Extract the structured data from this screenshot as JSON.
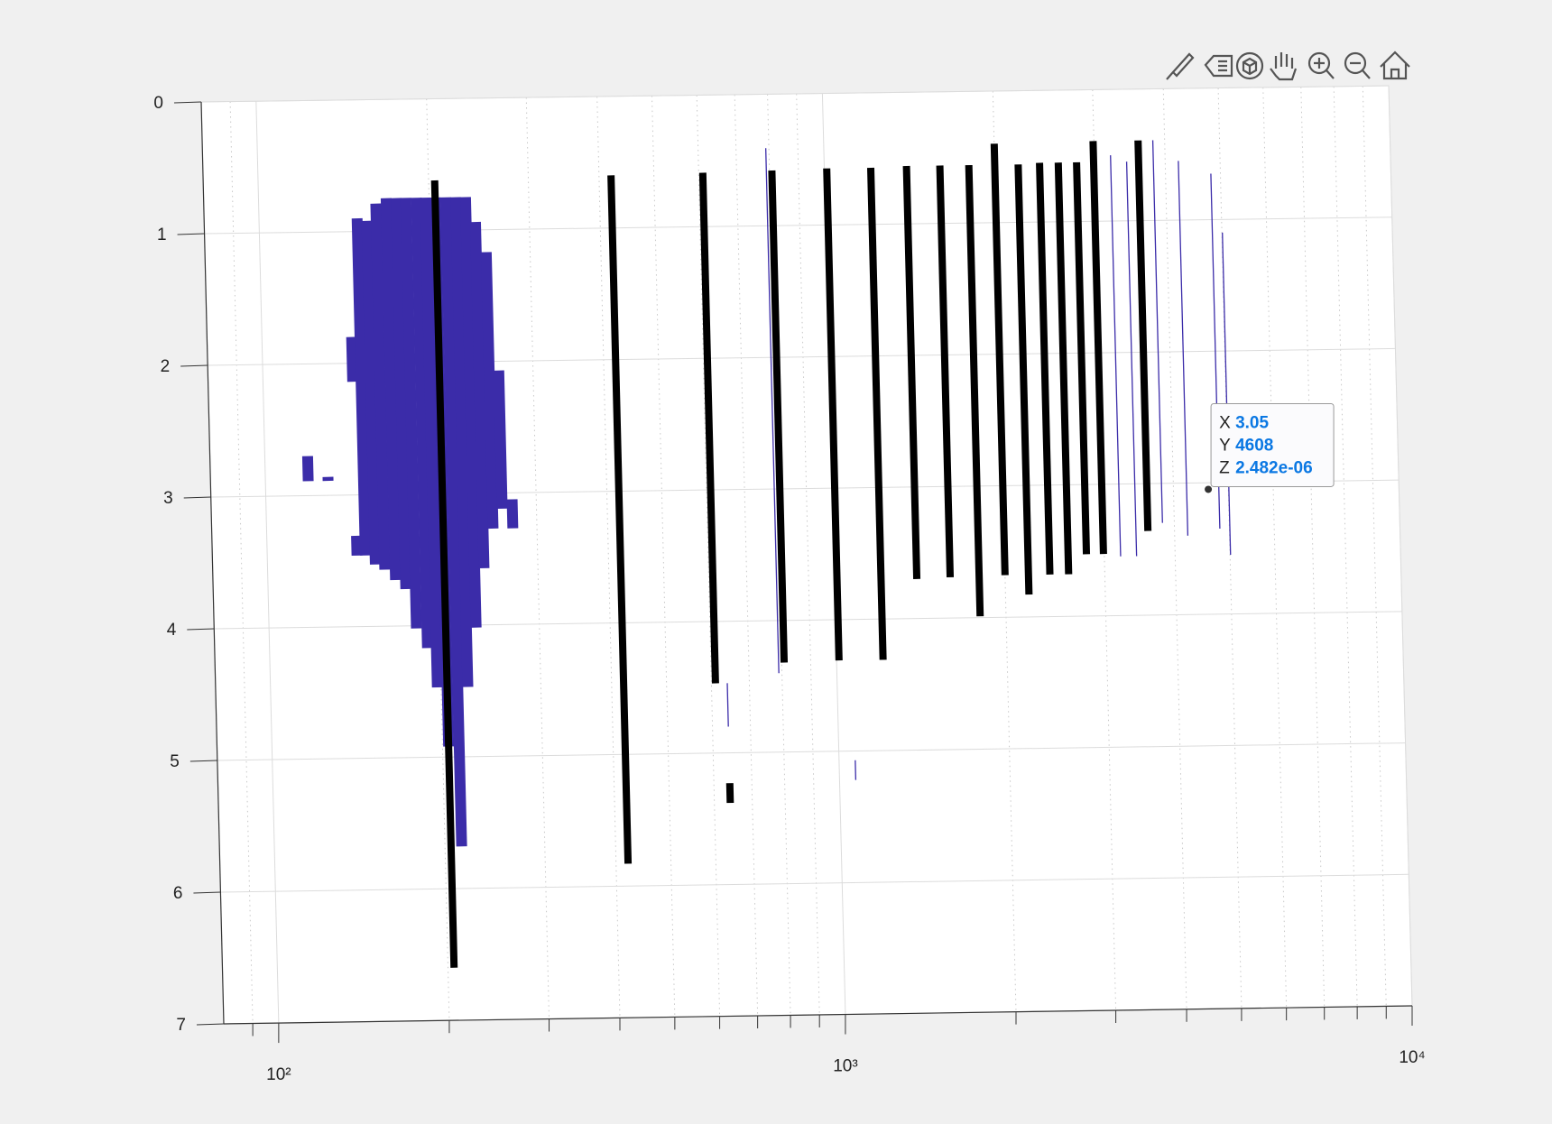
{
  "chart_data": {
    "type": "segments",
    "xscale": "log",
    "xlim": [
      80,
      10000
    ],
    "ylim": [
      0,
      7
    ],
    "y_reversed": true,
    "grid": true,
    "xticks": [
      {
        "value": 100,
        "label": "10²"
      },
      {
        "value": 1000,
        "label": "10³"
      },
      {
        "value": 10000,
        "label": "10⁴"
      }
    ],
    "xminor": [
      90,
      200,
      300,
      400,
      500,
      600,
      700,
      800,
      900,
      2000,
      3000,
      4000,
      5000,
      6000,
      7000,
      8000,
      9000
    ],
    "yticks": [
      0,
      1,
      2,
      3,
      4,
      5,
      6,
      7
    ],
    "fill": {
      "color": "#3b2ca9",
      "x": [
        119,
        129,
        144,
        144,
        149,
        155,
        161,
        168,
        175,
        182,
        190,
        197,
        205,
        214,
        223,
        232,
        241,
        251,
        261,
        272
      ],
      "ystart": [
        2.7,
        2.86,
        1.8,
        3.31,
        0.9,
        0.92,
        0.79,
        0.75,
        0.75,
        0.75,
        0.75,
        0.75,
        0.75,
        0.75,
        0.75,
        0.75,
        0.94,
        1.17,
        2.07,
        3.05
      ],
      "yend": [
        2.89,
        2.89,
        2.14,
        3.46,
        3.46,
        3.53,
        3.57,
        3.65,
        3.72,
        4.02,
        4.17,
        4.47,
        4.92,
        5.68,
        4.47,
        4.02,
        3.57,
        3.27,
        3.12,
        3.27
      ]
    },
    "lines": {
      "color": "#3b2ca9",
      "x": [
        790,
        1068,
        640,
        3205,
        3420,
        3812,
        4220,
        4810,
        5010
      ],
      "ystart": [
        0.41,
        5.07,
        4.47,
        0.5,
        0.55,
        0.39,
        0.55,
        0.65,
        1.1
      ],
      "yend": [
        4.4,
        5.22,
        4.8,
        3.55,
        3.55,
        3.3,
        3.4,
        3.35,
        3.55
      ]
    },
    "bars": {
      "color": "#000000",
      "x": [
        205,
        420,
        610,
        640,
        808,
        1010,
        1208,
        1397,
        1600,
        1800,
        2000,
        2200,
        2400,
        2590,
        2790,
        2990,
        3590
      ],
      "ystart": [
        0.62,
        0.6,
        0.59,
        5.23,
        0.58,
        0.57,
        0.57,
        0.56,
        0.56,
        0.56,
        0.4,
        0.56,
        0.55,
        0.55,
        0.55,
        0.39,
        0.39
      ],
      "yend": [
        6.6,
        5.83,
        4.47,
        5.38,
        4.32,
        4.31,
        4.31,
        3.7,
        3.69,
        3.99,
        3.68,
        3.83,
        3.68,
        3.68,
        3.53,
        3.53,
        3.36
      ]
    },
    "datatip": {
      "labels": [
        "X",
        "Y",
        "Z"
      ],
      "values": [
        3.05,
        4608,
        2.482e-06
      ],
      "value_labels": [
        "3.05",
        "4608",
        "2.482e-06"
      ]
    }
  }
}
